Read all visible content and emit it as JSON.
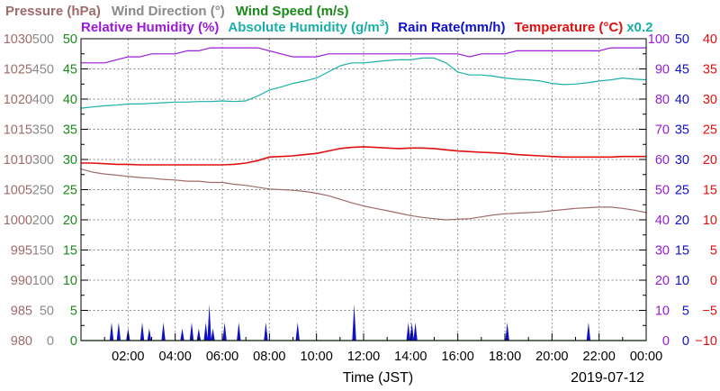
{
  "chart_data": {
    "type": "line",
    "date_label": "2019-07-12",
    "xlabel": "Time (JST)",
    "x_ticks": [
      "02:00",
      "04:00",
      "06:00",
      "08:00",
      "10:00",
      "12:00",
      "14:00",
      "16:00",
      "18:00",
      "20:00",
      "22:00",
      "00:00"
    ],
    "xlim_hours": [
      0,
      24
    ],
    "grid": true,
    "legend": {
      "row1": [
        {
          "label": "Pressure (hPa)",
          "color": "#a06a6a"
        },
        {
          "label": "Wind Direction (°)",
          "color": "#8a8a8a"
        },
        {
          "label": "Wind Speed (m/s)",
          "color": "#1a8a1a"
        }
      ],
      "row2": [
        {
          "label": "Relative Humidity (%)",
          "color": "#9a1ad8"
        },
        {
          "label": "Absolute Humidity (g/m",
          "sup": "3",
          "close": ")",
          "color": "#1ab0a8"
        },
        {
          "label": "Rain Rate(mm/h)",
          "color": "#1010c8"
        },
        {
          "label": "Temperature (°C)",
          "color": "#e01010"
        },
        {
          "label": "x0.2",
          "color": "#1ab0a8"
        }
      ]
    },
    "axes": {
      "pressure": {
        "color": "#a06a6a",
        "min": 980,
        "max": 1030,
        "ticks": [
          "1030",
          "1025",
          "1020",
          "1015",
          "1010",
          "1005",
          "1000",
          "995",
          "990",
          "985",
          "980"
        ]
      },
      "wind_direction": {
        "color": "#8a8a8a",
        "min": 0,
        "max": 500,
        "ticks": [
          "500",
          "450",
          "400",
          "350",
          "300",
          "250",
          "200",
          "150",
          "100",
          "50",
          "0"
        ]
      },
      "wind_speed": {
        "color": "#1a8a1a",
        "min": 0,
        "max": 50,
        "ticks": [
          "50",
          "45",
          "40",
          "35",
          "30",
          "25",
          "20",
          "15",
          "10",
          "5",
          "0"
        ]
      },
      "relative_humidity": {
        "color": "#9a1ad8",
        "min": 0,
        "max": 100,
        "ticks": [
          "100",
          "90",
          "80",
          "70",
          "60",
          "50",
          "40",
          "30",
          "20",
          "10",
          "0"
        ]
      },
      "rain_rate": {
        "color": "#1010c8",
        "min": 0,
        "max": 50,
        "ticks": [
          "50",
          "45",
          "40",
          "35",
          "30",
          "25",
          "20",
          "15",
          "10",
          "5",
          "0"
        ]
      },
      "temperature": {
        "color": "#e01010",
        "min": -10,
        "max": 40,
        "ticks": [
          "40",
          "35",
          "30",
          "25",
          "20",
          "15",
          "10",
          "5",
          "0",
          "−5",
          "−10"
        ]
      }
    },
    "series": [
      {
        "name": "Pressure (hPa)",
        "axis": "pressure",
        "color": "#a06a6a",
        "x": [
          0,
          0.5,
          1,
          1.5,
          2,
          2.5,
          3,
          3.5,
          4,
          4.5,
          5,
          5.5,
          6,
          6.5,
          7,
          7.5,
          8,
          8.5,
          9,
          9.5,
          10,
          10.5,
          11,
          11.5,
          12,
          12.5,
          13,
          13.5,
          14,
          14.5,
          15,
          15.5,
          16,
          16.5,
          17,
          17.5,
          18,
          18.5,
          19,
          19.5,
          20,
          20.5,
          21,
          21.5,
          22,
          22.5,
          23,
          23.5,
          24
        ],
        "values": [
          1008.4,
          1007.9,
          1007.6,
          1007.4,
          1007.2,
          1007.0,
          1006.9,
          1006.7,
          1006.6,
          1006.4,
          1006.4,
          1006.2,
          1006.2,
          1005.9,
          1005.7,
          1005.4,
          1005.1,
          1005.0,
          1004.9,
          1004.7,
          1004.4,
          1004.0,
          1003.4,
          1002.8,
          1002.3,
          1001.9,
          1001.5,
          1001.1,
          1000.7,
          1000.4,
          1000.2,
          1000.0,
          1000.1,
          1000.2,
          1000.5,
          1000.8,
          1001.0,
          1001.1,
          1001.2,
          1001.3,
          1001.5,
          1001.7,
          1001.9,
          1002.0,
          1002.1,
          1002.1,
          1001.9,
          1001.6,
          1001.2
        ]
      },
      {
        "name": "Relative Humidity (%)",
        "axis": "relative_humidity",
        "color": "#9a1ad8",
        "x": [
          0,
          0.5,
          1,
          1.5,
          2,
          2.5,
          3,
          3.5,
          4,
          4.5,
          5,
          5.5,
          6,
          6.5,
          7,
          7.5,
          8,
          8.5,
          9,
          9.5,
          10,
          10.5,
          11,
          11.5,
          12,
          12.5,
          13,
          13.5,
          14,
          14.5,
          15,
          15.5,
          16,
          16.5,
          17,
          17.5,
          18,
          18.5,
          19,
          19.5,
          20,
          20.5,
          21,
          21.5,
          22,
          22.5,
          23,
          23.5,
          24
        ],
        "values": [
          92,
          92,
          92,
          93,
          94,
          94,
          95,
          95,
          95,
          96,
          96,
          97,
          97,
          97,
          97,
          97,
          96,
          95,
          94,
          94,
          94,
          95,
          95,
          95,
          95,
          95,
          95,
          95,
          95,
          95,
          95,
          95,
          95,
          94,
          95,
          95,
          95,
          96,
          96,
          96,
          96,
          96,
          96,
          96,
          96,
          97,
          97,
          97,
          97
        ]
      },
      {
        "name": "Absolute Humidity (g/m3) x0.2",
        "axis": "wind_speed",
        "color": "#1ab0a8",
        "x": [
          0,
          0.5,
          1,
          1.5,
          2,
          2.5,
          3,
          3.5,
          4,
          4.5,
          5,
          5.5,
          6,
          6.5,
          7,
          7.5,
          8,
          8.5,
          9,
          9.5,
          10,
          10.5,
          11,
          11.5,
          12,
          12.5,
          13,
          13.5,
          14,
          14.5,
          15,
          15.5,
          16,
          16.5,
          17,
          17.5,
          18,
          18.5,
          19,
          19.5,
          20,
          20.5,
          21,
          21.5,
          22,
          22.5,
          23,
          23.5,
          24
        ],
        "values": [
          38.5,
          38.7,
          38.9,
          39.0,
          39.2,
          39.2,
          39.3,
          39.4,
          39.5,
          39.5,
          39.6,
          39.6,
          39.7,
          39.6,
          39.7,
          40.5,
          41.5,
          42.0,
          42.6,
          43.0,
          43.5,
          44.5,
          45.5,
          46.0,
          46.0,
          46.2,
          46.4,
          46.5,
          46.5,
          46.8,
          46.8,
          46.0,
          44.5,
          44.0,
          44.0,
          43.8,
          43.5,
          43.3,
          43.2,
          43.0,
          42.6,
          42.4,
          42.5,
          42.7,
          43.0,
          43.2,
          43.5,
          43.3,
          43.2
        ]
      },
      {
        "name": "Temperature (°C)",
        "axis": "temperature",
        "color": "#e01010",
        "x": [
          0,
          0.5,
          1,
          1.5,
          2,
          2.5,
          3,
          3.5,
          4,
          4.5,
          5,
          5.5,
          6,
          6.5,
          7,
          7.5,
          8,
          8.5,
          9,
          9.5,
          10,
          10.5,
          11,
          11.5,
          12,
          12.5,
          13,
          13.5,
          14,
          14.5,
          15,
          15.5,
          16,
          16.5,
          17,
          17.5,
          18,
          18.5,
          19,
          19.5,
          20,
          20.5,
          21,
          21.5,
          22,
          22.5,
          23,
          23.5,
          24
        ],
        "values": [
          19.4,
          19.4,
          19.3,
          19.2,
          19.2,
          19.1,
          19.1,
          19.1,
          19.1,
          19.1,
          19.1,
          19.1,
          19.1,
          19.2,
          19.4,
          19.8,
          20.4,
          20.5,
          20.6,
          20.8,
          21.0,
          21.4,
          21.8,
          22.0,
          22.1,
          22.0,
          21.9,
          21.8,
          21.9,
          21.9,
          21.8,
          21.6,
          21.4,
          21.3,
          21.2,
          21.1,
          21.0,
          20.8,
          20.7,
          20.6,
          20.5,
          20.4,
          20.4,
          20.4,
          20.4,
          20.4,
          20.5,
          20.5,
          20.5
        ]
      },
      {
        "name": "Rain Rate(mm/h)",
        "axis": "rain_rate",
        "color": "#1010c8",
        "type": "spikes",
        "x": [
          1.3,
          1.6,
          2.0,
          2.6,
          2.9,
          3.5,
          4.3,
          4.7,
          5.0,
          5.3,
          5.45,
          5.6,
          6.1,
          6.7,
          7.85,
          9.2,
          11.6,
          13.9,
          14.05,
          14.2,
          18.1,
          21.55
        ],
        "values": [
          3,
          3,
          2,
          3,
          2,
          3,
          2,
          3,
          2,
          3,
          6,
          2,
          3,
          3,
          3,
          3,
          6,
          3,
          3,
          3,
          3,
          3
        ]
      },
      {
        "name": "Wind Speed (m/s)",
        "axis": "wind_speed",
        "color": "#1a8a1a",
        "x": [
          0,
          24
        ],
        "values": [
          0,
          0
        ]
      }
    ]
  }
}
